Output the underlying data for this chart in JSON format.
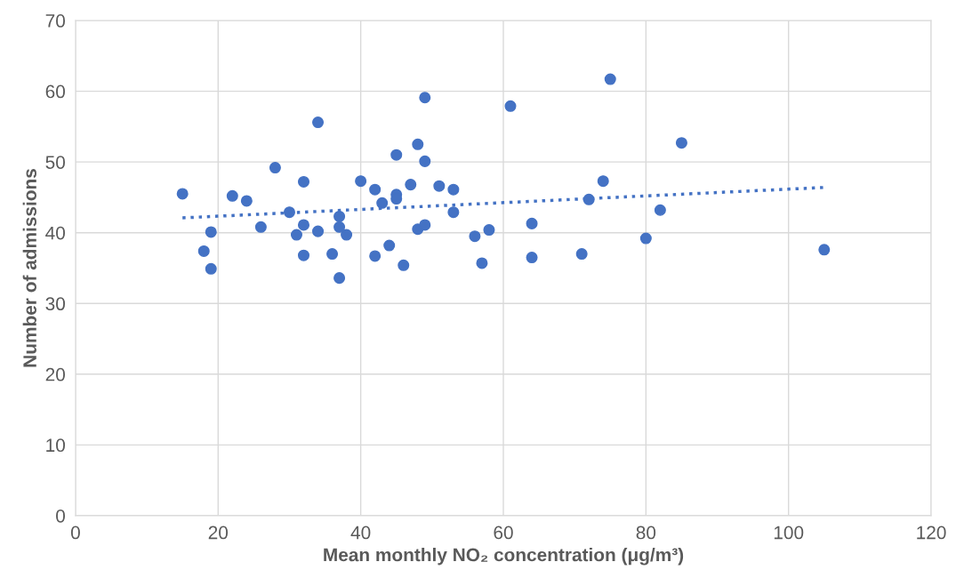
{
  "chart_data": {
    "type": "scatter",
    "xlabel": "Mean monthly NO₂ concentration (μg/m³)",
    "ylabel": "Number of admissions",
    "xlim": [
      0,
      120
    ],
    "xticks": [
      0,
      20,
      40,
      60,
      80,
      100,
      120
    ],
    "ylim": [
      0,
      70
    ],
    "yticks": [
      0,
      10,
      20,
      30,
      40,
      50,
      60,
      70
    ],
    "grid": true,
    "marker": "circle",
    "series": [
      {
        "color": "#4472c4",
        "x": [
          15,
          18,
          19,
          19,
          22,
          24,
          26,
          28,
          30,
          32,
          32,
          31,
          32,
          34,
          34,
          36,
          37,
          37,
          38,
          37,
          40,
          42,
          49,
          61,
          48,
          45,
          49,
          42,
          47,
          51,
          53,
          45,
          45,
          43,
          53,
          48,
          49,
          56,
          58,
          44,
          46,
          57,
          64,
          64,
          75,
          85,
          74,
          72,
          82,
          80,
          71,
          105
        ],
        "values": [
          45.5,
          37.4,
          40.1,
          34.9,
          45.2,
          44.5,
          40.8,
          49.2,
          42.9,
          47.2,
          41.1,
          39.7,
          36.8,
          55.6,
          40.2,
          37.0,
          42.3,
          40.8,
          39.7,
          33.6,
          47.3,
          36.7,
          59.1,
          57.9,
          52.5,
          51.0,
          50.1,
          46.1,
          46.8,
          46.6,
          46.1,
          45.4,
          44.8,
          44.2,
          42.9,
          40.5,
          41.1,
          39.5,
          40.4,
          38.2,
          35.4,
          35.7,
          41.3,
          36.5,
          61.7,
          52.7,
          47.3,
          44.7,
          43.2,
          39.2,
          37.0,
          37.6
        ]
      },
      {
        "type": "line",
        "color": "#4472c4",
        "line_style": "dotted",
        "marker": "none",
        "x": [
          15,
          105
        ],
        "values": [
          42.1,
          46.4
        ]
      }
    ]
  }
}
